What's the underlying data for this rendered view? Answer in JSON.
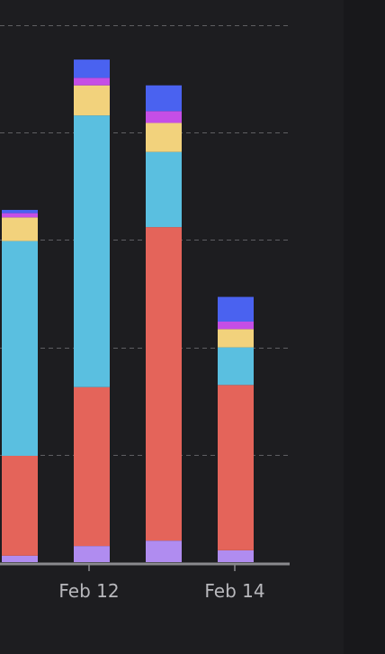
{
  "chart_data": {
    "type": "bar",
    "stacked": true,
    "categories": [
      "",
      "Feb 12",
      "",
      "Feb 14"
    ],
    "y_range": [
      0,
      500
    ],
    "grid": true,
    "gridlines": [
      100,
      200,
      300,
      400,
      500
    ],
    "series": [
      {
        "color": "#b08cf0",
        "values": [
          6,
          15,
          20,
          11
        ]
      },
      {
        "color": "#e4645a",
        "values": [
          93,
          148,
          292,
          154
        ]
      },
      {
        "color": "#5abfe0",
        "values": [
          200,
          253,
          70,
          35
        ]
      },
      {
        "color": "#f2d27c",
        "values": [
          22,
          28,
          27,
          17
        ]
      },
      {
        "color": "#c54ee6",
        "values": [
          4,
          7,
          11,
          7
        ]
      },
      {
        "color": "#4a62f0",
        "values": [
          3,
          17,
          24,
          23
        ]
      }
    ]
  }
}
